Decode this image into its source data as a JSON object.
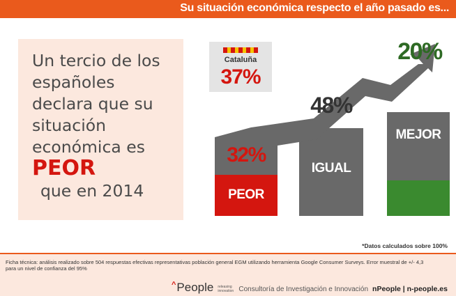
{
  "header": {
    "title": "Su situación económica respecto el año pasado es..."
  },
  "headline": {
    "lines": [
      "Un tercio de los",
      "españoles",
      "declara que su",
      "situación",
      "económica es"
    ],
    "emphasis": "PEOR",
    "tail": "que en 2014"
  },
  "regional": {
    "label": "Cataluña",
    "value": "37%",
    "flag_colors": [
      "#f5c400",
      "#d4160f"
    ]
  },
  "colors": {
    "accent": "#ea5a1c",
    "peor": "#d4160f",
    "igual": "#696969",
    "mejor": "#3a8a2f",
    "mejor_text": "#2e6a24",
    "arrow": "#696969"
  },
  "chart_data": {
    "type": "bar",
    "categories": [
      "PEOR",
      "IGUAL",
      "MEJOR"
    ],
    "values": [
      32,
      48,
      20
    ],
    "value_labels": [
      "32%",
      "48%",
      "20%"
    ],
    "unit": "%",
    "note": "*Datos calculados sobre 100%"
  },
  "footer": {
    "ficha": "Ficha técnica: análisis realizado sobre 504 respuestas efectivas representativas población general EGM utilizando herramienta Google Consumer Surveys. Error muestral de +/- 4,3 para un nivel de confianza del 95%",
    "brand": "People",
    "brand_tagline": "releasing innovation",
    "description": "Consultoría de Investigación e Innovación",
    "site": "nPeople | n-people.es"
  }
}
